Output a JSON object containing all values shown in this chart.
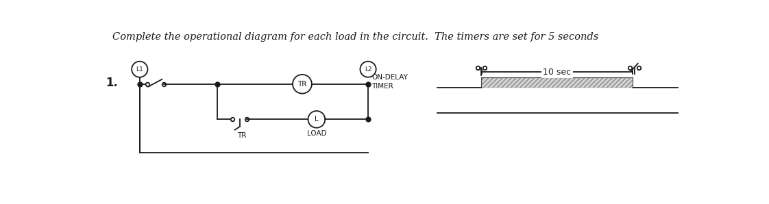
{
  "title": "Complete the operational diagram for each load in the circuit.  The timers are set for 5 seconds",
  "title_fontsize": 10.5,
  "title_style": "italic",
  "bg_color": "#ffffff",
  "line_color": "#1a1a1a",
  "diagram_label": "1.",
  "L1_label": "L1",
  "L2_label": "L2",
  "TR_label": "TR",
  "L_label": "L",
  "TR_bottom_label": "TR",
  "LOAD_label": "LOAD",
  "on_delay_label": "ON-DELAY\nTIMER",
  "timing_label": "10 sec",
  "hatch_color": "#bbbbbb"
}
